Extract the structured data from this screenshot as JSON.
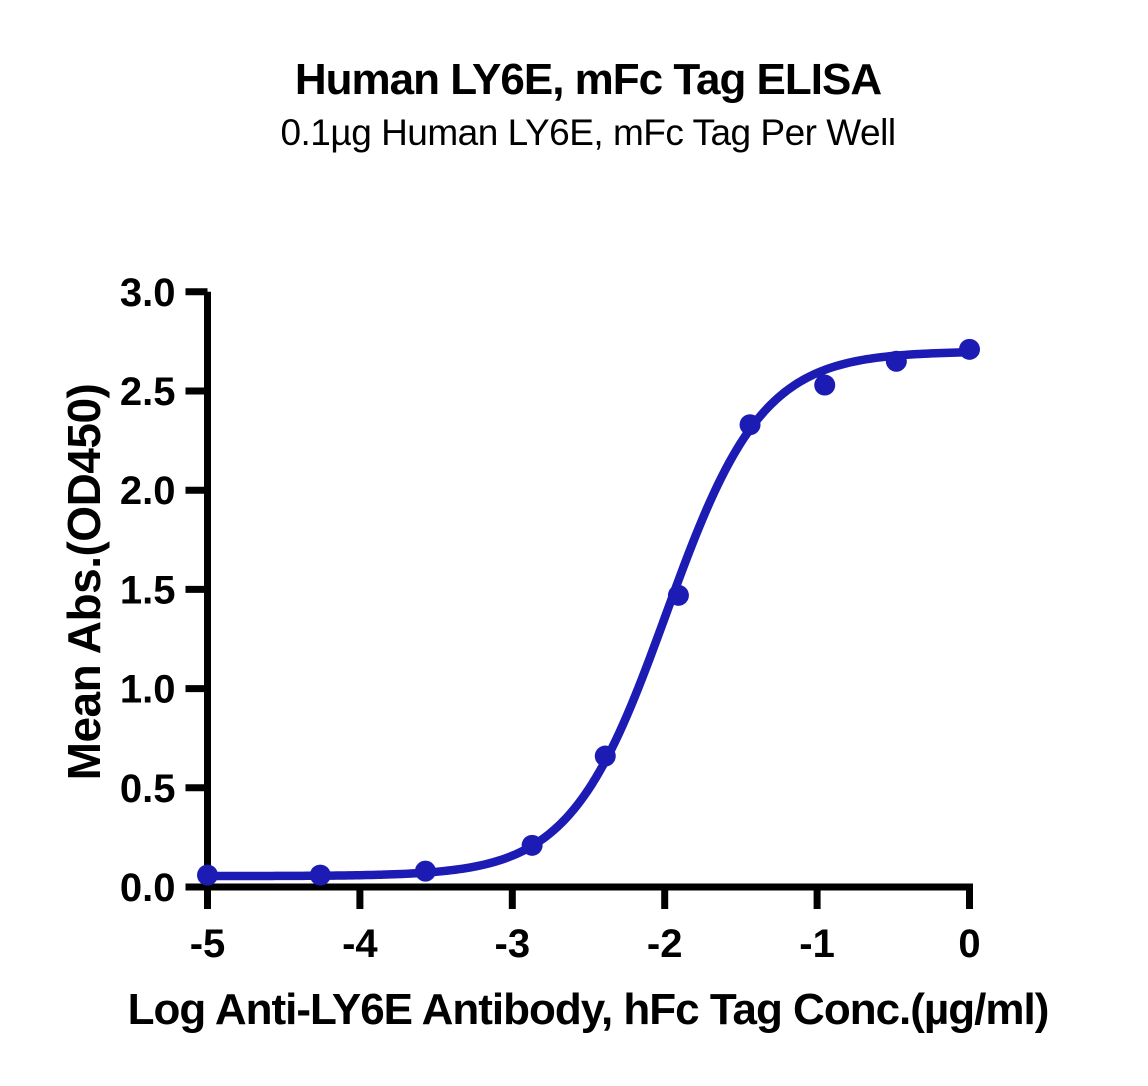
{
  "chart_data": {
    "type": "scatter",
    "title": "Human LY6E, mFc Tag ELISA",
    "subtitle": "0.1µg Human LY6E, mFc Tag Per Well",
    "xlabel": "Log Anti-LY6E Antibody, hFc Tag Conc.(µg/ml)",
    "ylabel": "Mean Abs.(OD450)",
    "xlim": [
      -5,
      0
    ],
    "ylim": [
      0,
      3
    ],
    "x_ticks": [
      -5,
      -4,
      -3,
      -2,
      -1,
      0
    ],
    "x_tick_labels": [
      "-5",
      "-4",
      "-3",
      "-2",
      "-1",
      "0"
    ],
    "y_ticks": [
      0,
      0.5,
      1,
      1.5,
      2,
      2.5,
      3
    ],
    "y_tick_labels": [
      "0.0",
      "0.5",
      "1.0",
      "1.5",
      "2.0",
      "2.5",
      "3.0"
    ],
    "grid": false,
    "legend": null,
    "colors": {
      "curve": "#1c1cb4",
      "marker": "#1c1cb4",
      "axis": "#000000",
      "background": "#ffffff"
    },
    "series": [
      {
        "marker": "circle",
        "points": [
          {
            "log_conc": -5.0,
            "od450": 0.06
          },
          {
            "log_conc": -4.26,
            "od450": 0.06
          },
          {
            "log_conc": -3.57,
            "od450": 0.08
          },
          {
            "log_conc": -2.87,
            "od450": 0.21
          },
          {
            "log_conc": -2.39,
            "od450": 0.66
          },
          {
            "log_conc": -1.91,
            "od450": 1.47
          },
          {
            "log_conc": -1.44,
            "od450": 2.33
          },
          {
            "log_conc": -0.95,
            "od450": 2.53
          },
          {
            "log_conc": -0.48,
            "od450": 2.65
          },
          {
            "log_conc": 0.0,
            "od450": 2.71
          }
        ]
      }
    ],
    "curve_fit": {
      "model": "4PL",
      "bottom": 0.055,
      "top": 2.7,
      "log_ec50": -1.99,
      "hill_slope": 1.38
    }
  }
}
